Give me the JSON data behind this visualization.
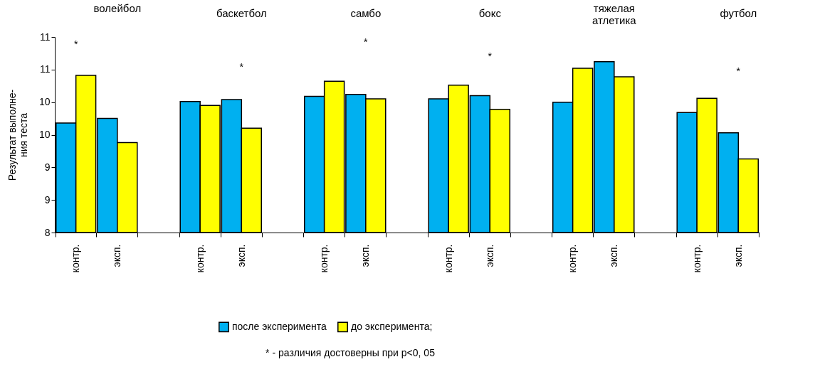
{
  "chart_data": {
    "type": "bar",
    "ylabel": [
      "Результат  выполне-",
      "ния теста"
    ],
    "categories": [
      "контр.",
      "эксп.",
      null,
      "контр.",
      "эксп.",
      null,
      "контр.",
      "эксп.",
      null,
      "контр.",
      "эксп.",
      null,
      "контр.",
      "эксп.",
      null,
      "контр.",
      "эксп."
    ],
    "series": [
      {
        "name": "после эксперимента",
        "color": "#00b0f0",
        "values": [
          9.68,
          9.75,
          null,
          10.01,
          10.04,
          null,
          10.09,
          10.12,
          null,
          10.05,
          10.1,
          null,
          10.0,
          10.62,
          null,
          9.84,
          9.53
        ]
      },
      {
        "name": "до эксперимента;",
        "color": "#ffff00",
        "values": [
          10.41,
          9.38,
          null,
          9.95,
          9.6,
          null,
          10.32,
          10.05,
          null,
          10.26,
          9.89,
          null,
          10.52,
          10.39,
          null,
          10.06,
          9.13
        ]
      }
    ],
    "ylim": [
      8,
      11
    ],
    "yticks": [
      8,
      {
        "value": 8.5,
        "label": "9"
      },
      9,
      {
        "value": 9.5,
        "label": "10"
      },
      10,
      {
        "value": 10.5,
        "label": "11"
      },
      11
    ],
    "grid": false,
    "legend": "bottom",
    "annotations": [
      "волейбол",
      "баскетбол",
      "самбо",
      "бокс",
      "тяжелая атлетика",
      "футбол",
      "*",
      "*",
      "*",
      "*",
      "*",
      "* - различия достоверны при p<0, 05"
    ]
  }
}
